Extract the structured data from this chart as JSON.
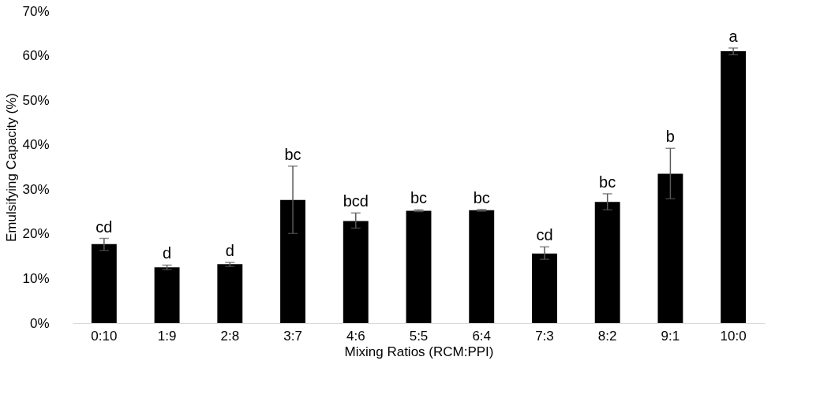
{
  "chart_data": {
    "type": "bar",
    "xlabel": "Mixing Ratios (RCM:PPI)",
    "ylabel": "Emulsifying Capacity (%)",
    "categories": [
      "0:10",
      "1:9",
      "2:8",
      "3:7",
      "4:6",
      "5:5",
      "6:4",
      "7:3",
      "8:2",
      "9:1",
      "10:0"
    ],
    "values": [
      17.7,
      12.5,
      13.2,
      27.6,
      22.9,
      25.2,
      25.3,
      15.6,
      27.2,
      33.5,
      61.0
    ],
    "color": "#000000",
    "errors": [
      [
        16.3,
        19.0
      ],
      [
        12.0,
        13.0
      ],
      [
        12.7,
        13.6
      ],
      [
        20.1,
        35.2
      ],
      [
        21.3,
        24.7
      ],
      [
        25.0,
        25.4
      ],
      [
        25.1,
        25.5
      ],
      [
        14.3,
        17.1
      ],
      [
        25.4,
        29.0
      ],
      [
        27.9,
        39.2
      ],
      [
        60.2,
        61.7
      ]
    ],
    "ylim": [
      0,
      70
    ],
    "yticks": [
      {
        "value": 0,
        "label": "0%"
      },
      {
        "value": 10,
        "label": "10%"
      },
      {
        "value": 20,
        "label": "20%"
      },
      {
        "value": 30,
        "label": "30%"
      },
      {
        "value": 40,
        "label": "40%"
      },
      {
        "value": 50,
        "label": "50%"
      },
      {
        "value": 60,
        "label": "60%"
      },
      {
        "value": 70,
        "label": "70%"
      }
    ],
    "grid": false,
    "annotations": [
      "cd",
      "d",
      "d",
      "bc",
      "bcd",
      "bc",
      "bc",
      "cd",
      "bc",
      "b",
      "a"
    ]
  }
}
